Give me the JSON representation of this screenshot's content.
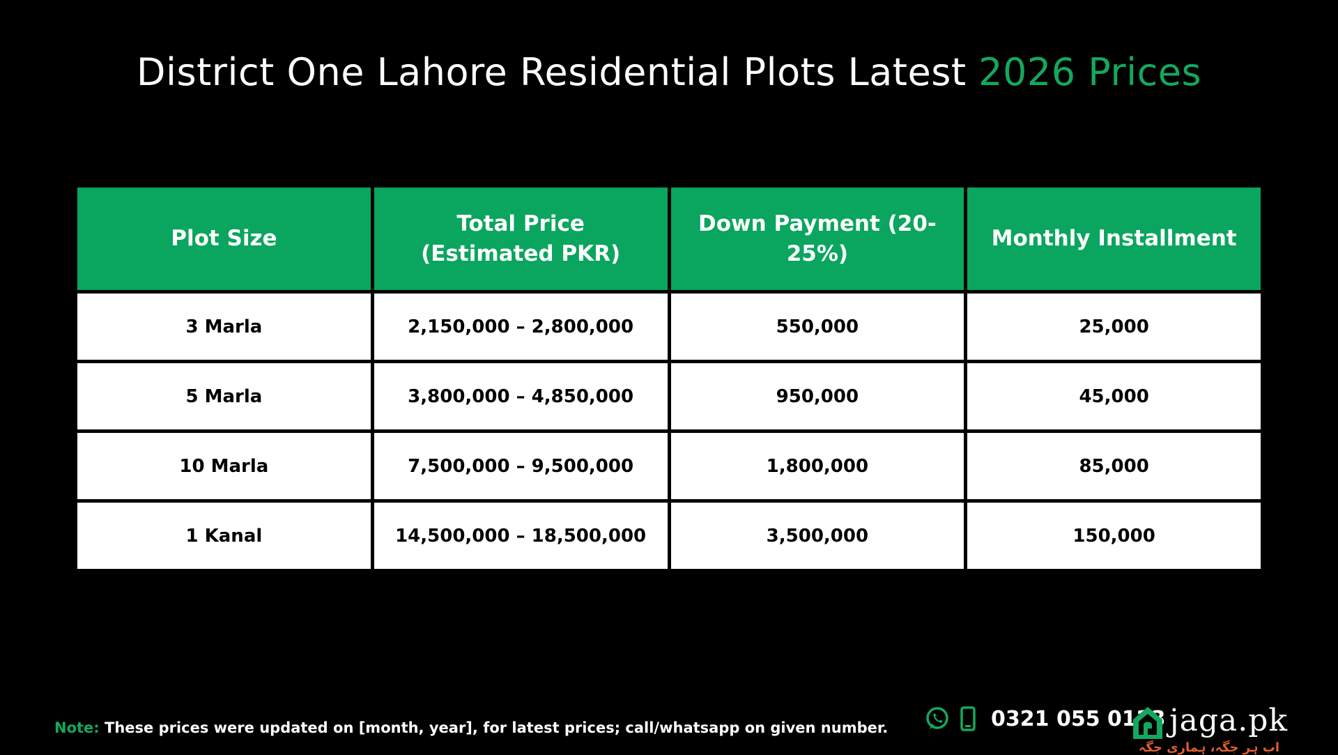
{
  "title": {
    "main": "District One Lahore Residential Plots Latest ",
    "highlight": "2026 Prices"
  },
  "table": {
    "headers": [
      "Plot Size",
      "Total Price (Estimated PKR)",
      "Down Payment (20-25%)",
      "Monthly Installment"
    ],
    "rows": [
      [
        "3 Marla",
        "2,150,000 – 2,800,000",
        "550,000",
        "25,000"
      ],
      [
        "5 Marla",
        "3,800,000 – 4,850,000",
        "950,000",
        "45,000"
      ],
      [
        "10 Marla",
        "7,500,000 – 9,500,000",
        "1,800,000",
        "85,000"
      ],
      [
        "1 Kanal",
        "14,500,000 – 18,500,000",
        "3,500,000",
        "150,000"
      ]
    ]
  },
  "footer": {
    "note_label": "Note:",
    "note_text": " These prices were updated on [month, year], for latest prices; call/whatsapp on given number."
  },
  "contact": {
    "whatsapp_icon": "whatsapp-icon",
    "mobile_icon": "mobile-phone-icon",
    "phone": "0321 055 0123"
  },
  "brand": {
    "logo_icon": "house-logo-icon",
    "name": "jaga.pk",
    "tagline": "اب ہر جگہ، ہماری جگہ"
  },
  "colors": {
    "background": "#000000",
    "accent_green": "#0aa55e",
    "header_text": "#ffffff",
    "cell_background": "#ffffff",
    "cell_text": "#000000",
    "tagline": "#e0602a"
  }
}
